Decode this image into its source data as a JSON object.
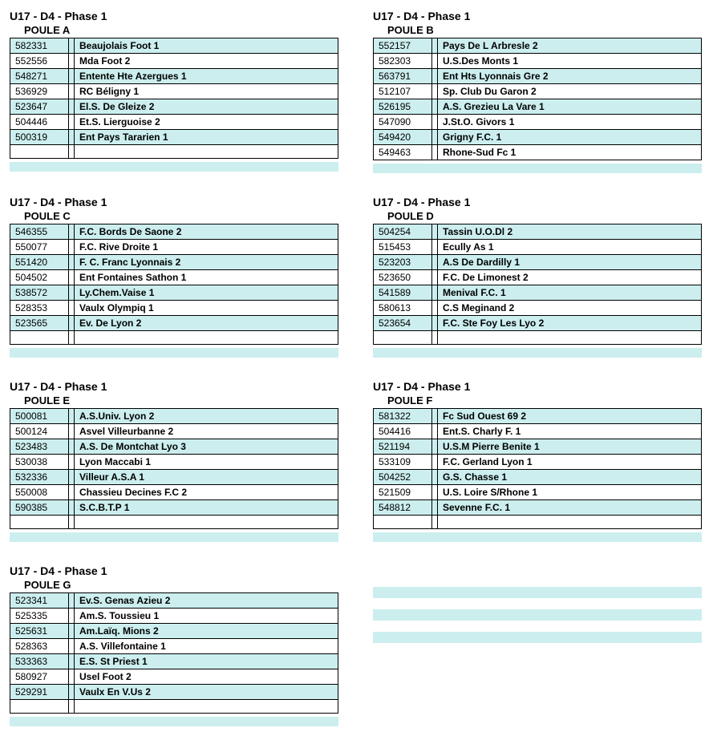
{
  "colors": {
    "alt_row": "#cceeee",
    "plain_row": "#ffffff",
    "border": "#000000",
    "text": "#000000"
  },
  "fonts": {
    "phase_title_size": 14,
    "poule_title_size": 13,
    "cell_size": 12
  },
  "phase_label": "U17 - D4 - Phase 1",
  "poule_prefix": "POULE",
  "poules": [
    {
      "letter": "A",
      "teams": [
        {
          "code": "582331",
          "name": "Beaujolais Foot 1"
        },
        {
          "code": "552556",
          "name": "Mda Foot 2"
        },
        {
          "code": "548271",
          "name": "Entente Hte Azergues 1"
        },
        {
          "code": "536929",
          "name": "RC Béligny 1"
        },
        {
          "code": "523647",
          "name": "El.S. De Gleize 2"
        },
        {
          "code": "504446",
          "name": "Et.S. Lierguoise 2"
        },
        {
          "code": "500319",
          "name": "Ent Pays Tararien 1"
        }
      ],
      "trailing_empty_rows": 1
    },
    {
      "letter": "B",
      "teams": [
        {
          "code": "552157",
          "name": "Pays De  L Arbresle 2"
        },
        {
          "code": "582303",
          "name": "U.S.Des Monts 1"
        },
        {
          "code": "563791",
          "name": "Ent Hts Lyonnais Gre 2"
        },
        {
          "code": "512107",
          "name": "Sp. Club Du Garon 2"
        },
        {
          "code": "526195",
          "name": "A.S. Grezieu La Vare 1"
        },
        {
          "code": "547090",
          "name": "J.St.O. Givors 1"
        },
        {
          "code": "549420",
          "name": "Grigny F.C. 1"
        },
        {
          "code": "549463",
          "name": "Rhone-Sud Fc 1"
        }
      ],
      "trailing_empty_rows": 0
    },
    {
      "letter": "C",
      "teams": [
        {
          "code": "546355",
          "name": "F.C. Bords De Saone 2"
        },
        {
          "code": "550077",
          "name": "F.C. Rive Droite 1"
        },
        {
          "code": "551420",
          "name": "F. C. Franc Lyonnais 2"
        },
        {
          "code": "504502",
          "name": "Ent Fontaines Sathon 1"
        },
        {
          "code": "538572",
          "name": "Ly.Chem.Vaise 1"
        },
        {
          "code": "528353",
          "name": "Vaulx Olympiq 1"
        },
        {
          "code": "523565",
          "name": "Ev. De Lyon 2"
        }
      ],
      "trailing_empty_rows": 1
    },
    {
      "letter": "D",
      "teams": [
        {
          "code": "504254",
          "name": "Tassin U.O.Dl 2"
        },
        {
          "code": "515453",
          "name": "Ecully As 1"
        },
        {
          "code": "523203",
          "name": "A.S De Dardilly 1"
        },
        {
          "code": "523650",
          "name": "F.C. De Limonest 2"
        },
        {
          "code": "541589",
          "name": "Menival F.C. 1"
        },
        {
          "code": "580613",
          "name": "C.S Meginand 2"
        },
        {
          "code": "523654",
          "name": "F.C. Ste Foy Les Lyo 2"
        }
      ],
      "trailing_empty_rows": 1
    },
    {
      "letter": "E",
      "teams": [
        {
          "code": "500081",
          "name": "A.S.Univ. Lyon 2"
        },
        {
          "code": "500124",
          "name": "Asvel Villeurbanne 2"
        },
        {
          "code": "523483",
          "name": "A.S. De Montchat Lyo 3"
        },
        {
          "code": "530038",
          "name": "Lyon Maccabi 1"
        },
        {
          "code": "532336",
          "name": "Villeur A.S.A 1"
        },
        {
          "code": "550008",
          "name": "Chassieu Decines F.C 2"
        },
        {
          "code": "590385",
          "name": "S.C.B.T.P 1"
        }
      ],
      "trailing_empty_rows": 1
    },
    {
      "letter": "F",
      "teams": [
        {
          "code": "581322",
          "name": "Fc Sud Ouest 69 2"
        },
        {
          "code": "504416",
          "name": "Ent.S. Charly F. 1"
        },
        {
          "code": "521194",
          "name": "U.S.M Pierre Benite 1"
        },
        {
          "code": "533109",
          "name": "F.C. Gerland Lyon 1"
        },
        {
          "code": "504252",
          "name": "G.S. Chasse 1"
        },
        {
          "code": "521509",
          "name": "U.S. Loire S/Rhone 1"
        },
        {
          "code": "548812",
          "name": "Sevenne F.C. 1"
        }
      ],
      "trailing_empty_rows": 1
    },
    {
      "letter": "G",
      "teams": [
        {
          "code": "523341",
          "name": "Ev.S. Genas Azieu 2"
        },
        {
          "code": "525335",
          "name": "Am.S. Toussieu 1"
        },
        {
          "code": "525631",
          "name": "Am.Laïq. Mions 2"
        },
        {
          "code": "528363",
          "name": "A.S. Villefontaine 1"
        },
        {
          "code": "533363",
          "name": "E.S. St Priest 1"
        },
        {
          "code": "580927",
          "name": "Usel Foot 2"
        },
        {
          "code": "529291",
          "name": "Vaulx En V.Us 2"
        }
      ],
      "trailing_empty_rows": 1
    }
  ],
  "ghost_block_bars": 3
}
